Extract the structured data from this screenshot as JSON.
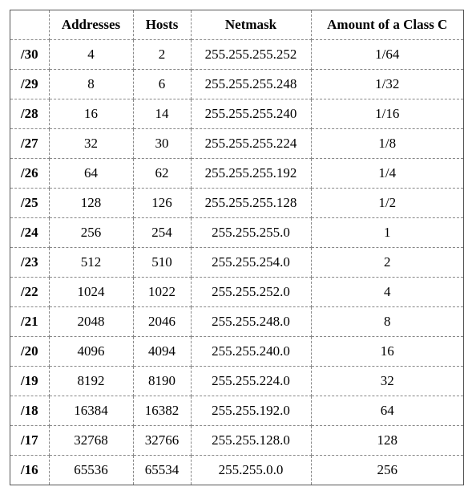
{
  "table": {
    "columns": [
      "",
      "Addresses",
      "Hosts",
      "Netmask",
      "Amount of a Class C"
    ],
    "rows": [
      {
        "cidr": "/30",
        "addresses": "4",
        "hosts": "2",
        "netmask": "255.255.255.252",
        "classc": "1/64"
      },
      {
        "cidr": "/29",
        "addresses": "8",
        "hosts": "6",
        "netmask": "255.255.255.248",
        "classc": "1/32"
      },
      {
        "cidr": "/28",
        "addresses": "16",
        "hosts": "14",
        "netmask": "255.255.255.240",
        "classc": "1/16"
      },
      {
        "cidr": "/27",
        "addresses": "32",
        "hosts": "30",
        "netmask": "255.255.255.224",
        "classc": "1/8"
      },
      {
        "cidr": "/26",
        "addresses": "64",
        "hosts": "62",
        "netmask": "255.255.255.192",
        "classc": "1/4"
      },
      {
        "cidr": "/25",
        "addresses": "128",
        "hosts": "126",
        "netmask": "255.255.255.128",
        "classc": "1/2"
      },
      {
        "cidr": "/24",
        "addresses": "256",
        "hosts": "254",
        "netmask": "255.255.255.0",
        "classc": "1"
      },
      {
        "cidr": "/23",
        "addresses": "512",
        "hosts": "510",
        "netmask": "255.255.254.0",
        "classc": "2"
      },
      {
        "cidr": "/22",
        "addresses": "1024",
        "hosts": "1022",
        "netmask": "255.255.252.0",
        "classc": "4"
      },
      {
        "cidr": "/21",
        "addresses": "2048",
        "hosts": "2046",
        "netmask": "255.255.248.0",
        "classc": "8"
      },
      {
        "cidr": "/20",
        "addresses": "4096",
        "hosts": "4094",
        "netmask": "255.255.240.0",
        "classc": "16"
      },
      {
        "cidr": "/19",
        "addresses": "8192",
        "hosts": "8190",
        "netmask": "255.255.224.0",
        "classc": "32"
      },
      {
        "cidr": "/18",
        "addresses": "16384",
        "hosts": "16382",
        "netmask": "255.255.192.0",
        "classc": "64"
      },
      {
        "cidr": "/17",
        "addresses": "32768",
        "hosts": "32766",
        "netmask": "255.255.128.0",
        "classc": "128"
      },
      {
        "cidr": "/16",
        "addresses": "65536",
        "hosts": "65534",
        "netmask": "255.255.0.0",
        "classc": "256"
      }
    ]
  }
}
